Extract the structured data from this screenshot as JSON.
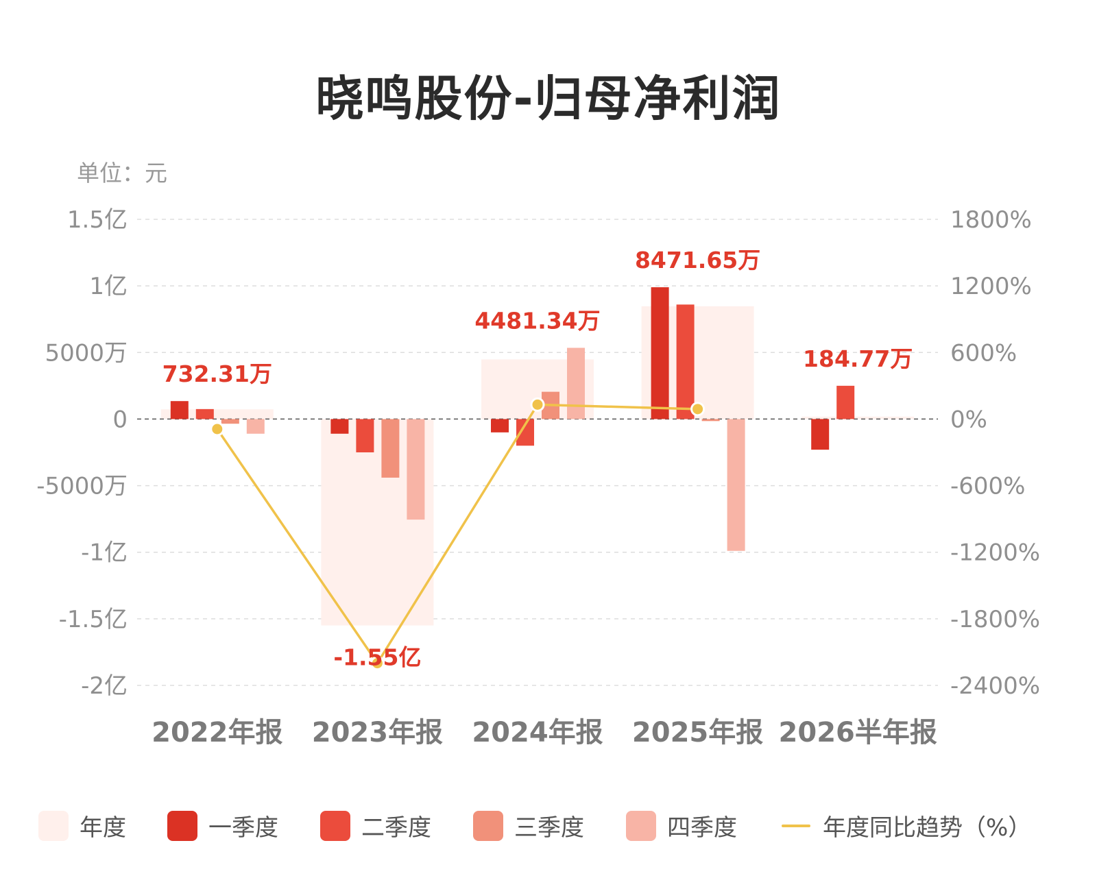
{
  "title": "晓鸣股份-归母净利润",
  "unit_label": "单位：元",
  "colors": {
    "annual": "#fff0ec",
    "q1": "#db3224",
    "q2": "#eb4c3c",
    "q3": "#f1917a",
    "q4": "#f8b4a6",
    "trend": "#f0c24a",
    "label": "#e03a2a"
  },
  "chart_data": {
    "type": "bar",
    "categories": [
      "2022年报",
      "2023年报",
      "2024年报",
      "2025年报",
      "2026半年报"
    ],
    "left_axis": {
      "ticks": [
        150000000,
        100000000,
        50000000,
        0,
        -50000000,
        -100000000,
        -150000000,
        -200000000
      ],
      "tick_labels": [
        "1.5亿",
        "1亿",
        "5000万",
        "0",
        "-5000万",
        "-1亿",
        "-1.5亿",
        "-2亿"
      ],
      "ylim": [
        -200000000,
        150000000
      ]
    },
    "right_axis": {
      "ticks": [
        1800,
        1200,
        600,
        0,
        -600,
        -1200,
        -1800,
        -2400
      ],
      "tick_labels": [
        "1800%",
        "1200%",
        "600%",
        "0%",
        "-600%",
        "-1200%",
        "-1800%",
        "-2400%"
      ],
      "ylim": [
        -2400,
        1800
      ]
    },
    "series": [
      {
        "name": "年度",
        "key": "annual",
        "values": [
          7323100,
          -155000000,
          44813400,
          84716500,
          1847700
        ]
      },
      {
        "name": "一季度",
        "key": "q1",
        "values": [
          13500000,
          -11000000,
          -10000000,
          99000000,
          -23000000
        ]
      },
      {
        "name": "二季度",
        "key": "q2",
        "values": [
          7500000,
          -25000000,
          -20000000,
          86000000,
          25000000
        ]
      },
      {
        "name": "三季度",
        "key": "q3",
        "values": [
          -3500000,
          -44000000,
          20500000,
          -1500000,
          null
        ]
      },
      {
        "name": "四季度",
        "key": "q4",
        "values": [
          -11000000,
          -75500000,
          53500000,
          -99000000,
          null
        ]
      }
    ],
    "trend": {
      "name": "年度同比趋势（%）",
      "values": [
        -90,
        -2200,
        130,
        90,
        null
      ]
    },
    "data_labels": [
      "732.31万",
      "-1.55亿",
      "4481.34万",
      "8471.65万",
      "184.77万"
    ],
    "grid": true,
    "legend_position": "bottom"
  }
}
